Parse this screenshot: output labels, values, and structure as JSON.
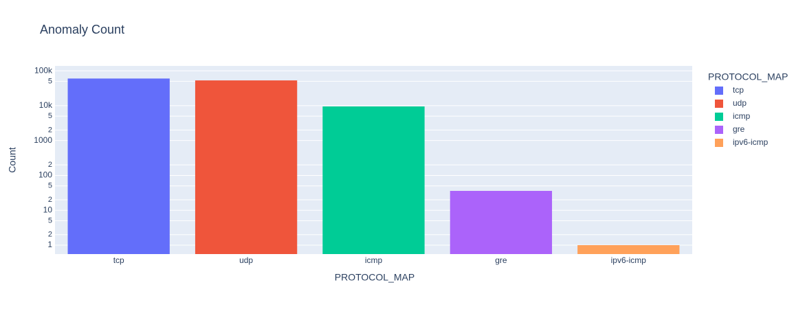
{
  "chart_data": {
    "type": "bar",
    "title": "Anomaly Count",
    "x_label": "PROTOCOL_MAP",
    "y_label": "Count",
    "legend_title": "PROTOCOL_MAP",
    "categories": [
      "tcp",
      "udp",
      "icmp",
      "gre",
      "ipv6-icmp"
    ],
    "values": [
      60000,
      53000,
      9500,
      36,
      1
    ],
    "colors": [
      "#636efa",
      "#EF553B",
      "#00cc96",
      "#ab63fa",
      "#FFA15A"
    ],
    "log_y": true,
    "grid": true,
    "legend": "right",
    "ylim": [
      0.555,
      138000
    ],
    "yticks": [
      {
        "value": 100000,
        "label": "100k"
      },
      {
        "value": 50000,
        "label": "5"
      },
      {
        "value": 10000,
        "label": "10k"
      },
      {
        "value": 5000,
        "label": "5"
      },
      {
        "value": 2000,
        "label": "2"
      },
      1000,
      {
        "value": 200,
        "label": "2"
      },
      100,
      {
        "value": 50,
        "label": "5"
      },
      {
        "value": 20,
        "label": "2"
      },
      10,
      {
        "value": 5,
        "label": "5"
      },
      {
        "value": 2,
        "label": "2"
      },
      1
    ]
  }
}
